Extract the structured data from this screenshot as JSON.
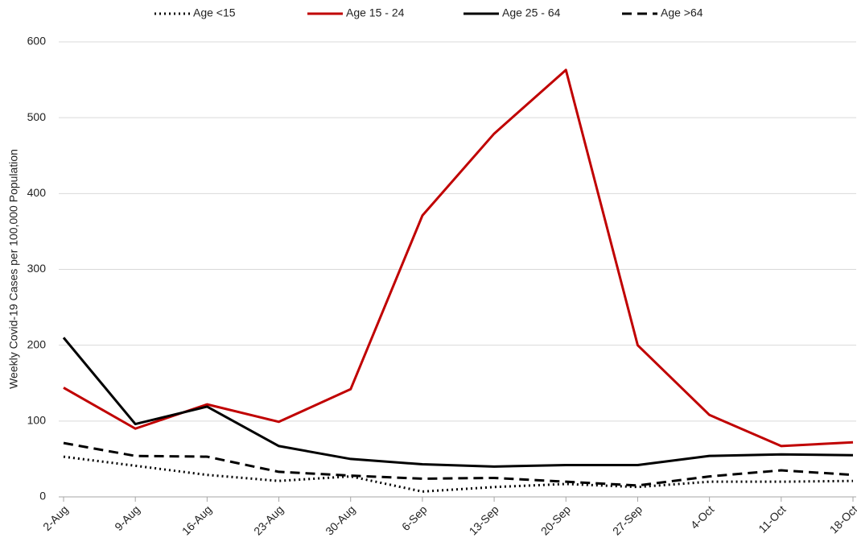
{
  "chart_data": {
    "type": "line",
    "y_label": "Weekly Covid-19 Cases per 100,000 Population",
    "categories": [
      "2-Aug",
      "9-Aug",
      "16-Aug",
      "23-Aug",
      "30-Aug",
      "6-Sep",
      "13-Sep",
      "20-Sep",
      "27-Sep",
      "4-Oct",
      "11-Oct",
      "18-Oct"
    ],
    "series": [
      {
        "name": "Age <15",
        "color": "#000000",
        "style": "dotted",
        "values": [
          53,
          41,
          29,
          21,
          27,
          7,
          13,
          17,
          13,
          20,
          20,
          21
        ]
      },
      {
        "name": "Age 15 - 24",
        "color": "#c00000",
        "style": "solid",
        "values": [
          144,
          90,
          122,
          99,
          142,
          371,
          479,
          563,
          200,
          108,
          67,
          72
        ]
      },
      {
        "name": "Age 25 - 64",
        "color": "#000000",
        "style": "solid",
        "values": [
          210,
          96,
          119,
          67,
          50,
          43,
          40,
          42,
          42,
          54,
          56,
          55
        ]
      },
      {
        "name": "Age >64",
        "color": "#000000",
        "style": "dashed",
        "values": [
          71,
          54,
          53,
          33,
          28,
          24,
          25,
          20,
          15,
          27,
          35,
          29
        ]
      }
    ],
    "ylim": [
      0,
      600
    ],
    "yticks": [
      0,
      100,
      200,
      300,
      400,
      500,
      600
    ],
    "grid": true,
    "legend": "top"
  }
}
